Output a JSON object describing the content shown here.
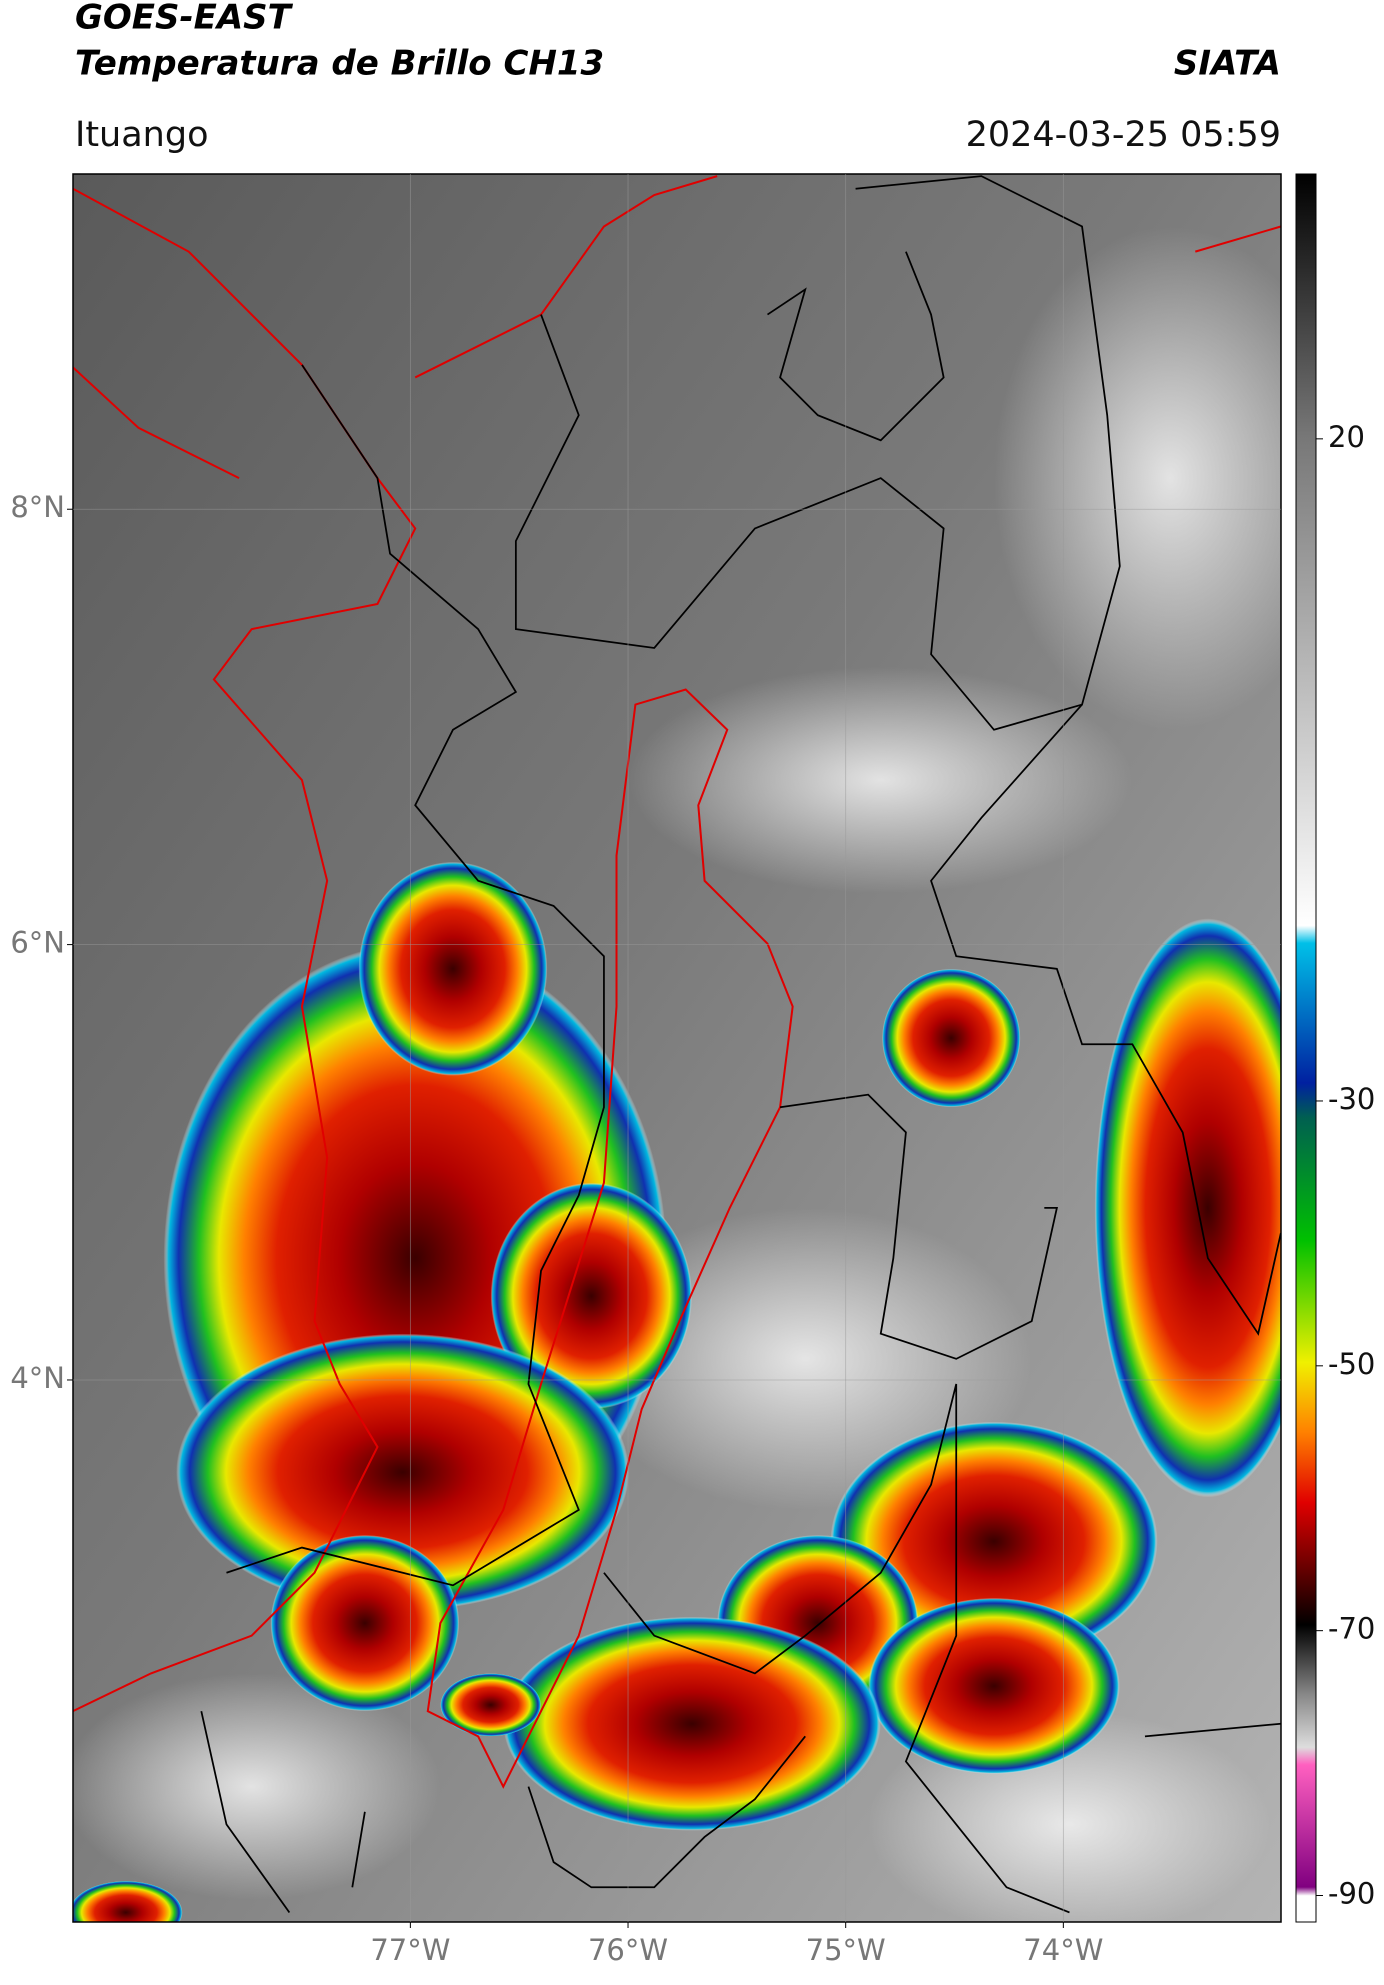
{
  "chart_data": {
    "type": "map",
    "title": "GOES-EAST",
    "subtitle": "Temperatura de Brillo CH13",
    "source": "SIATA",
    "location": "Ituango",
    "datetime": "2024-03-25 05:59",
    "xlim": [
      -78.55,
      -73.0
    ],
    "ylim": [
      1.51,
      9.54
    ],
    "xticks": [
      {
        "value": -77,
        "label": "77°W"
      },
      {
        "value": -76,
        "label": "76°W"
      },
      {
        "value": -75,
        "label": "75°W"
      },
      {
        "value": -74,
        "label": "74°W"
      }
    ],
    "yticks": [
      {
        "value": 8,
        "label": "8°N"
      },
      {
        "value": 6,
        "label": "6°N"
      },
      {
        "value": 4,
        "label": "4°N"
      }
    ],
    "grid": true,
    "colorbar": {
      "lim": [
        -92,
        40
      ],
      "ticks": [
        20,
        -30,
        -50,
        -70,
        -90
      ]
    }
  }
}
